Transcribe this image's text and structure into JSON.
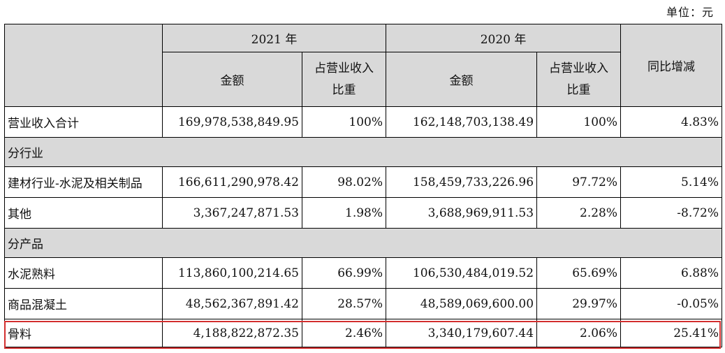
{
  "unit_label": "单位：元",
  "header": {
    "year_2021": "2021 年",
    "year_2020": "2020 年",
    "amount": "金额",
    "share_line1": "占营业收入",
    "share_line2": "比重",
    "yoy": "同比增减"
  },
  "total_row": {
    "label": "营业收入合计",
    "amt_2021": "169,978,538,849.95",
    "pct_2021": "100%",
    "amt_2020": "162,148,703,138.49",
    "pct_2020": "100%",
    "yoy": "4.83%"
  },
  "section_industry": "分行业",
  "industry_rows": [
    {
      "label": "建材行业-水泥及相关制品",
      "amt_2021": "166,611,290,978.42",
      "pct_2021": "98.02%",
      "amt_2020": "158,459,733,226.96",
      "pct_2020": "97.72%",
      "yoy": "5.14%"
    },
    {
      "label": "其他",
      "amt_2021": "3,367,247,871.53",
      "pct_2021": "1.98%",
      "amt_2020": "3,688,969,911.53",
      "pct_2020": "2.28%",
      "yoy": "-8.72%"
    }
  ],
  "section_product": "分产品",
  "product_rows": [
    {
      "label": "水泥熟料",
      "amt_2021": "113,860,100,214.65",
      "pct_2021": "66.99%",
      "amt_2020": "106,530,484,019.52",
      "pct_2020": "65.69%",
      "yoy": "6.88%"
    },
    {
      "label": "商品混凝土",
      "amt_2021": "48,562,367,891.42",
      "pct_2021": "28.57%",
      "amt_2020": "48,589,069,600.00",
      "pct_2020": "29.97%",
      "yoy": "-0.05%"
    },
    {
      "label": "骨料",
      "amt_2021": "4,188,822,872.35",
      "pct_2021": "2.46%",
      "amt_2020": "3,340,179,607.44",
      "pct_2020": "2.06%",
      "yoy": "25.41%"
    }
  ],
  "highlight_color": "#d32f2f"
}
